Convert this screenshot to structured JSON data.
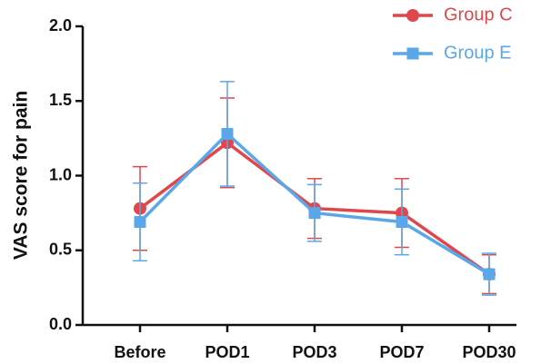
{
  "chart_data": {
    "type": "line",
    "title": "",
    "xlabel": "",
    "ylabel": "VAS score for pain",
    "categories": [
      "Before",
      "POD1",
      "POD3",
      "POD7",
      "POD30"
    ],
    "ylim": [
      0,
      2.0
    ],
    "yticks": [
      "0.0",
      "0.5",
      "1.0",
      "1.5",
      "2.0"
    ],
    "grid": false,
    "legend_position": "top-right",
    "series": [
      {
        "name": "Group C",
        "color": "#e0474c",
        "marker": "circle",
        "values": [
          0.78,
          1.22,
          0.78,
          0.75,
          0.34
        ],
        "error": [
          0.28,
          0.3,
          0.2,
          0.23,
          0.13
        ]
      },
      {
        "name": "Group E",
        "color": "#5aa7ea",
        "marker": "square",
        "values": [
          0.69,
          1.28,
          0.75,
          0.69,
          0.34
        ],
        "error": [
          0.26,
          0.35,
          0.19,
          0.22,
          0.14
        ]
      }
    ]
  }
}
